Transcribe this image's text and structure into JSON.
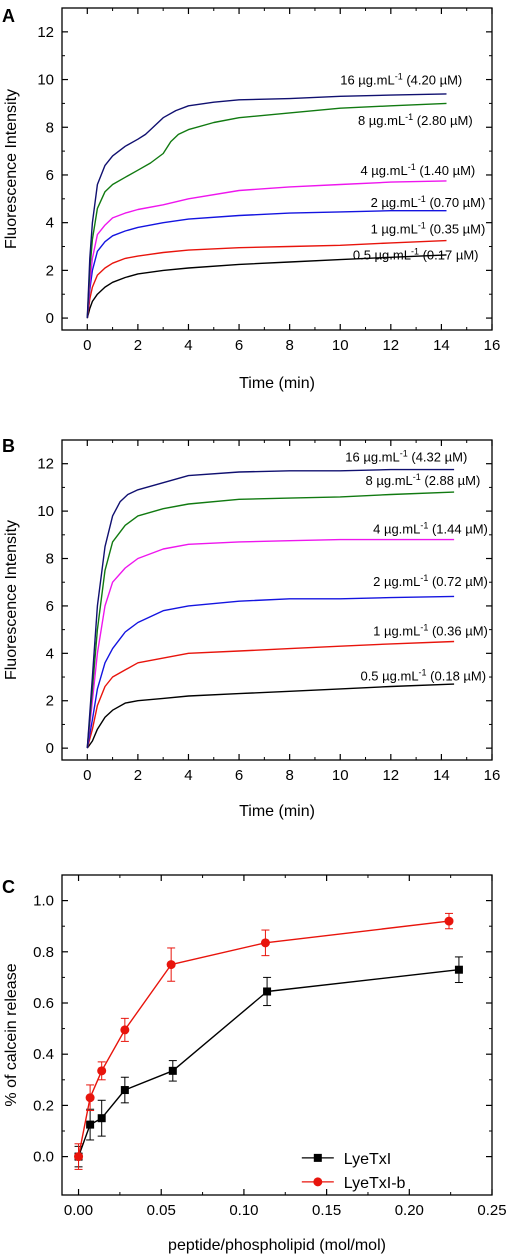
{
  "chart_data": [
    {
      "type": "line",
      "panel": "A",
      "xlabel": "Time (min)",
      "ylabel": "Fluorescence Intensity",
      "xlim": [
        -1,
        16
      ],
      "ylim": [
        -0.5,
        13
      ],
      "x_ticks": [
        "0",
        "2",
        "4",
        "6",
        "8",
        "10",
        "12",
        "14",
        "16"
      ],
      "y_ticks": [
        "0",
        "2",
        "4",
        "6",
        "8",
        "10",
        "12"
      ],
      "series": [
        {
          "name": "0.5 µg.mL⁻¹ (0.17 µM)",
          "color": "#000000",
          "x": [
            0,
            0.1,
            0.2,
            0.4,
            0.7,
            1.0,
            1.5,
            2,
            3,
            4,
            6,
            8,
            10,
            12,
            14.2
          ],
          "y": [
            0,
            0.4,
            0.7,
            1.0,
            1.3,
            1.5,
            1.7,
            1.85,
            2.0,
            2.1,
            2.25,
            2.35,
            2.45,
            2.55,
            2.65
          ]
        },
        {
          "name": "1 µg.mL⁻¹ (0.35 µM)",
          "color": "#e8140c",
          "x": [
            0,
            0.1,
            0.2,
            0.4,
            0.7,
            1.0,
            1.5,
            2,
            3,
            4,
            6,
            8,
            10,
            12,
            14.2
          ],
          "y": [
            0,
            0.8,
            1.3,
            1.8,
            2.1,
            2.3,
            2.5,
            2.6,
            2.75,
            2.85,
            2.95,
            3.0,
            3.05,
            3.15,
            3.25
          ]
        },
        {
          "name": "2 µg.mL⁻¹ (0.70 µM)",
          "color": "#1414e0",
          "x": [
            0,
            0.1,
            0.2,
            0.4,
            0.7,
            1.0,
            1.5,
            2,
            3,
            4,
            6,
            8,
            10,
            12,
            14.2
          ],
          "y": [
            0,
            1.2,
            2.0,
            2.8,
            3.2,
            3.45,
            3.65,
            3.8,
            4.0,
            4.15,
            4.3,
            4.4,
            4.45,
            4.5,
            4.5
          ]
        },
        {
          "name": "4 µg.mL⁻¹ (1.40 µM)",
          "color": "#ee16ee",
          "x": [
            0,
            0.1,
            0.2,
            0.4,
            0.7,
            1.0,
            1.5,
            2,
            3,
            4,
            6,
            8,
            10,
            12,
            14.2
          ],
          "y": [
            0,
            1.5,
            2.5,
            3.5,
            3.9,
            4.2,
            4.4,
            4.55,
            4.75,
            5.0,
            5.35,
            5.5,
            5.6,
            5.7,
            5.75
          ]
        },
        {
          "name": "8 µg.mL⁻¹ (2.80 µM)",
          "color": "#117a11",
          "x": [
            0,
            0.1,
            0.2,
            0.4,
            0.7,
            1.0,
            1.5,
            2,
            2.5,
            3.0,
            3.3,
            3.6,
            4,
            5,
            6,
            8,
            10,
            12,
            14.2
          ],
          "y": [
            0,
            2.0,
            3.3,
            4.6,
            5.3,
            5.6,
            5.9,
            6.2,
            6.5,
            6.9,
            7.4,
            7.7,
            7.9,
            8.2,
            8.4,
            8.6,
            8.8,
            8.9,
            9.0
          ]
        },
        {
          "name": "16 µg.mL⁻¹ (4.20 µM)",
          "color": "#101070",
          "x": [
            0,
            0.1,
            0.2,
            0.4,
            0.7,
            1.0,
            1.5,
            2,
            2.3,
            2.6,
            3.0,
            3.5,
            4,
            5,
            6,
            8,
            10,
            12,
            14.2
          ],
          "y": [
            0,
            2.5,
            4.0,
            5.6,
            6.4,
            6.8,
            7.2,
            7.5,
            7.7,
            8.0,
            8.4,
            8.7,
            8.9,
            9.05,
            9.15,
            9.2,
            9.3,
            9.35,
            9.4
          ]
        }
      ],
      "labels": [
        {
          "value": "0.5",
          "unit": "µg.mL",
          "sup": "-1",
          "molar": " (0.17 µM)",
          "x": 10.5,
          "y": 2.45
        },
        {
          "value": "1",
          "unit": "µg.mL",
          "sup": "-1",
          "molar": " (0.35 µM)",
          "x": 11.2,
          "y": 3.55
        },
        {
          "value": "2",
          "unit": "µg.mL",
          "sup": "-1",
          "molar": " (0.70 µM)",
          "x": 11.2,
          "y": 4.65
        },
        {
          "value": "4",
          "unit": "µg.mL",
          "sup": "-1",
          "molar": " (1.40 µM)",
          "x": 10.8,
          "y": 6.0
        },
        {
          "value": "8",
          "unit": "µg.mL",
          "sup": "-1",
          "molar": " (2.80 µM)",
          "x": 10.7,
          "y": 8.1
        },
        {
          "value": "16",
          "unit": "µg.mL",
          "sup": "-1",
          "molar": " (4.20 µM)",
          "x": 10.0,
          "y": 9.8
        }
      ]
    },
    {
      "type": "line",
      "panel": "B",
      "xlabel": "Time (min)",
      "ylabel": "Fluorescence Intensity",
      "xlim": [
        -1,
        16
      ],
      "ylim": [
        -0.5,
        13
      ],
      "x_ticks": [
        "0",
        "2",
        "4",
        "6",
        "8",
        "10",
        "12",
        "14",
        "16"
      ],
      "y_ticks": [
        "0",
        "2",
        "4",
        "6",
        "8",
        "10",
        "12"
      ],
      "series": [
        {
          "name": "0.5 µg.mL⁻¹ (0.18 µM)",
          "color": "#000000",
          "x": [
            0,
            0.2,
            0.4,
            0.7,
            1.0,
            1.5,
            2,
            3,
            4,
            6,
            8,
            10,
            12,
            14.5
          ],
          "y": [
            0,
            0.3,
            0.8,
            1.3,
            1.6,
            1.9,
            2.0,
            2.1,
            2.2,
            2.3,
            2.4,
            2.5,
            2.6,
            2.7
          ]
        },
        {
          "name": "1 µg.mL⁻¹ (0.36 µM)",
          "color": "#e8140c",
          "x": [
            0,
            0.2,
            0.4,
            0.7,
            1.0,
            1.5,
            2,
            3,
            4,
            6,
            8,
            10,
            12,
            14.5
          ],
          "y": [
            0,
            0.8,
            1.8,
            2.6,
            3.0,
            3.3,
            3.6,
            3.8,
            4.0,
            4.1,
            4.2,
            4.3,
            4.4,
            4.5
          ]
        },
        {
          "name": "2 µg.mL⁻¹ (0.72 µM)",
          "color": "#1414e0",
          "x": [
            0,
            0.2,
            0.4,
            0.7,
            1.0,
            1.5,
            2,
            3,
            4,
            6,
            8,
            10,
            12,
            14.5
          ],
          "y": [
            0,
            1.2,
            2.5,
            3.6,
            4.2,
            4.9,
            5.3,
            5.8,
            6.0,
            6.2,
            6.3,
            6.3,
            6.35,
            6.4
          ]
        },
        {
          "name": "4 µg.mL⁻¹ (1.44 µM)",
          "color": "#ee16ee",
          "x": [
            0,
            0.2,
            0.4,
            0.7,
            1.0,
            1.5,
            2,
            3,
            4,
            6,
            8,
            10,
            12,
            14.5
          ],
          "y": [
            0,
            2.0,
            4.0,
            6.0,
            7.0,
            7.6,
            8.0,
            8.4,
            8.6,
            8.7,
            8.75,
            8.8,
            8.8,
            8.8
          ]
        },
        {
          "name": "8 µg.mL⁻¹ (2.88 µM)",
          "color": "#117a11",
          "x": [
            0,
            0.2,
            0.4,
            0.7,
            1.0,
            1.5,
            2,
            3,
            4,
            6,
            8,
            10,
            12,
            14.5
          ],
          "y": [
            0,
            2.5,
            5.0,
            7.5,
            8.7,
            9.4,
            9.8,
            10.1,
            10.3,
            10.5,
            10.55,
            10.6,
            10.7,
            10.8
          ]
        },
        {
          "name": "16 µg.mL⁻¹ (4.32 µM)",
          "color": "#101070",
          "x": [
            0,
            0.2,
            0.4,
            0.7,
            1.0,
            1.3,
            1.6,
            2,
            3,
            4,
            6,
            8,
            10,
            12,
            14.5
          ],
          "y": [
            0,
            3.0,
            6.0,
            8.5,
            9.8,
            10.4,
            10.7,
            10.9,
            11.2,
            11.5,
            11.65,
            11.7,
            11.7,
            11.75,
            11.75
          ]
        }
      ],
      "labels": [
        {
          "value": "0.5",
          "unit": "µg.mL",
          "sup": "-1",
          "molar": " (0.18 µM)",
          "x": 10.8,
          "y": 2.85
        },
        {
          "value": "1",
          "unit": "µg.mL",
          "sup": "-1",
          "molar": " (0.36 µM)",
          "x": 11.3,
          "y": 4.75
        },
        {
          "value": "2",
          "unit": "µg.mL",
          "sup": "-1",
          "molar": " (0.72 µM)",
          "x": 11.3,
          "y": 6.85
        },
        {
          "value": "4",
          "unit": "µg.mL",
          "sup": "-1",
          "molar": " (1.44 µM)",
          "x": 11.3,
          "y": 9.05
        },
        {
          "value": "8",
          "unit": "µg.mL",
          "sup": "-1",
          "molar": " (2.88 µM)",
          "x": 11.0,
          "y": 11.1
        },
        {
          "value": "16",
          "unit": "µg.mL",
          "sup": "-1",
          "molar": " (4.32 µM)",
          "x": 10.2,
          "y": 12.1
        }
      ]
    },
    {
      "type": "line",
      "panel": "C",
      "xlabel": "peptide/phospholipid (mol/mol)",
      "ylabel": "% of calcein release",
      "xlim": [
        -0.01,
        0.25
      ],
      "ylim": [
        -0.15,
        1.1
      ],
      "x_ticks": [
        "0.00",
        "0.05",
        "0.10",
        "0.15",
        "0.20",
        "0.25"
      ],
      "y_ticks": [
        "0.0",
        "0.2",
        "0.4",
        "0.6",
        "0.8",
        "1.0"
      ],
      "series": [
        {
          "name": "LyeTxI",
          "color": "#000000",
          "marker": "square",
          "x": [
            0.0,
            0.007,
            0.014,
            0.028,
            0.057,
            0.114,
            0.23
          ],
          "y": [
            0.0,
            0.125,
            0.15,
            0.26,
            0.335,
            0.645,
            0.73
          ],
          "err": [
            0.04,
            0.06,
            0.07,
            0.05,
            0.04,
            0.055,
            0.05
          ]
        },
        {
          "name": "LyeTxI-b",
          "color": "#e8140c",
          "marker": "circle",
          "x": [
            0.0,
            0.007,
            0.014,
            0.028,
            0.056,
            0.113,
            0.224
          ],
          "y": [
            0.0,
            0.23,
            0.335,
            0.495,
            0.75,
            0.835,
            0.92
          ],
          "err": [
            0.05,
            0.05,
            0.035,
            0.045,
            0.065,
            0.05,
            0.03
          ]
        }
      ],
      "legend_position": "bottom-right"
    }
  ]
}
